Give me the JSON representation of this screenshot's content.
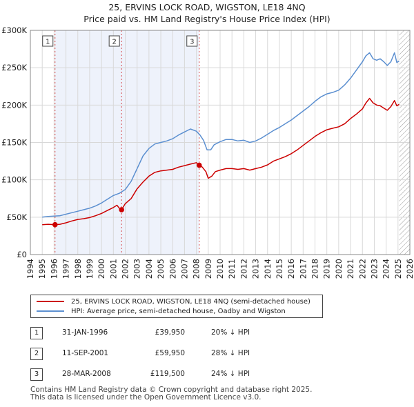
{
  "title_line1": "25, ERVINS LOCK ROAD, WIGSTON, LE18 4NQ",
  "title_line2": "Price paid vs. HM Land Registry's House Price Index (HPI)",
  "chart_data": {
    "type": "line",
    "xlim": [
      1994,
      2026
    ],
    "ylim": [
      0,
      300000
    ],
    "x_ticks": [
      "1994",
      "1995",
      "1996",
      "1997",
      "1998",
      "1999",
      "2000",
      "2001",
      "2002",
      "2003",
      "2004",
      "2005",
      "2006",
      "2007",
      "2008",
      "2009",
      "2010",
      "2011",
      "2012",
      "2013",
      "2014",
      "2015",
      "2016",
      "2017",
      "2018",
      "2019",
      "2020",
      "2021",
      "2022",
      "2023",
      "2024",
      "2025",
      "2026"
    ],
    "y_ticks": [
      {
        "value": 0,
        "label": "£0"
      },
      {
        "value": 50000,
        "label": "£50K"
      },
      {
        "value": 100000,
        "label": "£100K"
      },
      {
        "value": 150000,
        "label": "£150K"
      },
      {
        "value": 200000,
        "label": "£200K"
      },
      {
        "value": 250000,
        "label": "£250K"
      },
      {
        "value": 300000,
        "label": "£300K"
      }
    ],
    "grid": true,
    "data_range_end": 2025.1,
    "series": [
      {
        "name": "25, ERVINS LOCK ROAD, WIGSTON, LE18 4NQ (semi-detached house)",
        "color": "#cc0000",
        "x": [
          1995.0,
          1995.5,
          1996.08,
          1996.5,
          1997.0,
          1997.5,
          1998.0,
          1998.5,
          1999.0,
          1999.5,
          2000.0,
          2000.5,
          2001.0,
          2001.3,
          2001.5,
          2001.69,
          2002.0,
          2002.5,
          2003.0,
          2003.5,
          2004.0,
          2004.5,
          2005.0,
          2005.5,
          2006.0,
          2006.5,
          2007.0,
          2007.5,
          2008.0,
          2008.24,
          2008.5,
          2008.8,
          2009.0,
          2009.3,
          2009.6,
          2010.0,
          2010.5,
          2011.0,
          2011.5,
          2012.0,
          2012.5,
          2013.0,
          2013.5,
          2014.0,
          2014.5,
          2015.0,
          2015.5,
          2016.0,
          2016.5,
          2017.0,
          2017.5,
          2018.0,
          2018.5,
          2019.0,
          2019.5,
          2020.0,
          2020.5,
          2021.0,
          2021.5,
          2022.0,
          2022.3,
          2022.6,
          2022.9,
          2023.2,
          2023.5,
          2023.8,
          2024.1,
          2024.4,
          2024.7,
          2024.9,
          2025.1
        ],
        "values": [
          40000,
          40500,
          39950,
          40500,
          42500,
          45000,
          47000,
          48000,
          49500,
          52000,
          55000,
          59000,
          63000,
          66000,
          62000,
          59950,
          68000,
          75000,
          88000,
          97000,
          105000,
          110000,
          112000,
          113000,
          114000,
          117000,
          119000,
          121000,
          123000,
          119500,
          117000,
          111000,
          102000,
          105000,
          111000,
          113000,
          115000,
          115000,
          114000,
          115000,
          113000,
          115000,
          117000,
          120000,
          125000,
          128000,
          131000,
          135000,
          140000,
          146000,
          152000,
          158000,
          163000,
          167000,
          169000,
          171000,
          175000,
          182000,
          188000,
          195000,
          203000,
          209000,
          203000,
          200000,
          199000,
          196000,
          193000,
          198000,
          206000,
          199000,
          201000
        ]
      },
      {
        "name": "HPI: Average price, semi-detached house, Oadby and Wigston",
        "color": "#5b8fd0",
        "x": [
          1995.0,
          1995.5,
          1996.0,
          1996.5,
          1997.0,
          1997.5,
          1998.0,
          1998.5,
          1999.0,
          1999.5,
          2000.0,
          2000.5,
          2001.0,
          2001.5,
          2002.0,
          2002.5,
          2003.0,
          2003.5,
          2004.0,
          2004.5,
          2005.0,
          2005.5,
          2006.0,
          2006.5,
          2007.0,
          2007.5,
          2008.0,
          2008.3,
          2008.6,
          2008.9,
          2009.2,
          2009.5,
          2010.0,
          2010.5,
          2011.0,
          2011.5,
          2012.0,
          2012.5,
          2013.0,
          2013.5,
          2014.0,
          2014.5,
          2015.0,
          2015.5,
          2016.0,
          2016.5,
          2017.0,
          2017.5,
          2018.0,
          2018.5,
          2019.0,
          2019.5,
          2020.0,
          2020.5,
          2021.0,
          2021.5,
          2022.0,
          2022.3,
          2022.6,
          2022.9,
          2023.2,
          2023.5,
          2023.8,
          2024.1,
          2024.4,
          2024.7,
          2024.9,
          2025.1
        ],
        "values": [
          50000,
          51000,
          51500,
          52000,
          54000,
          56000,
          58000,
          60000,
          62000,
          65000,
          69000,
          74000,
          79000,
          82000,
          87000,
          98000,
          115000,
          132000,
          142000,
          148000,
          150000,
          152000,
          155000,
          160000,
          164000,
          168000,
          165000,
          160000,
          153000,
          140000,
          140000,
          147000,
          151000,
          154000,
          154000,
          152000,
          153000,
          150000,
          152000,
          156000,
          161000,
          166000,
          170000,
          175000,
          180000,
          186000,
          192000,
          198000,
          205000,
          211000,
          215000,
          217000,
          220000,
          227000,
          236000,
          247000,
          258000,
          266000,
          270000,
          262000,
          260000,
          262000,
          258000,
          253000,
          258000,
          270000,
          257000,
          259000
        ]
      }
    ],
    "markers": [
      {
        "label": "1",
        "x": 1996.08,
        "value": 39950
      },
      {
        "label": "2",
        "x": 2001.69,
        "value": 59950
      },
      {
        "label": "3",
        "x": 2008.24,
        "value": 119500
      }
    ]
  },
  "legend": [
    {
      "label": "25, ERVINS LOCK ROAD, WIGSTON, LE18 4NQ (semi-detached house)",
      "color": "#cc0000"
    },
    {
      "label": "HPI: Average price, semi-detached house, Oadby and Wigston",
      "color": "#5b8fd0"
    }
  ],
  "transactions": [
    {
      "num": "1",
      "date": "31-JAN-1996",
      "price": "£39,950",
      "hpi": "20% ↓ HPI"
    },
    {
      "num": "2",
      "date": "11-SEP-2001",
      "price": "£59,950",
      "hpi": "28% ↓ HPI"
    },
    {
      "num": "3",
      "date": "28-MAR-2008",
      "price": "£119,500",
      "hpi": "24% ↓ HPI"
    }
  ],
  "footer_line1": "Contains HM Land Registry data © Crown copyright and database right 2025.",
  "footer_line2": "This data is licensed under the Open Government Licence v3.0."
}
